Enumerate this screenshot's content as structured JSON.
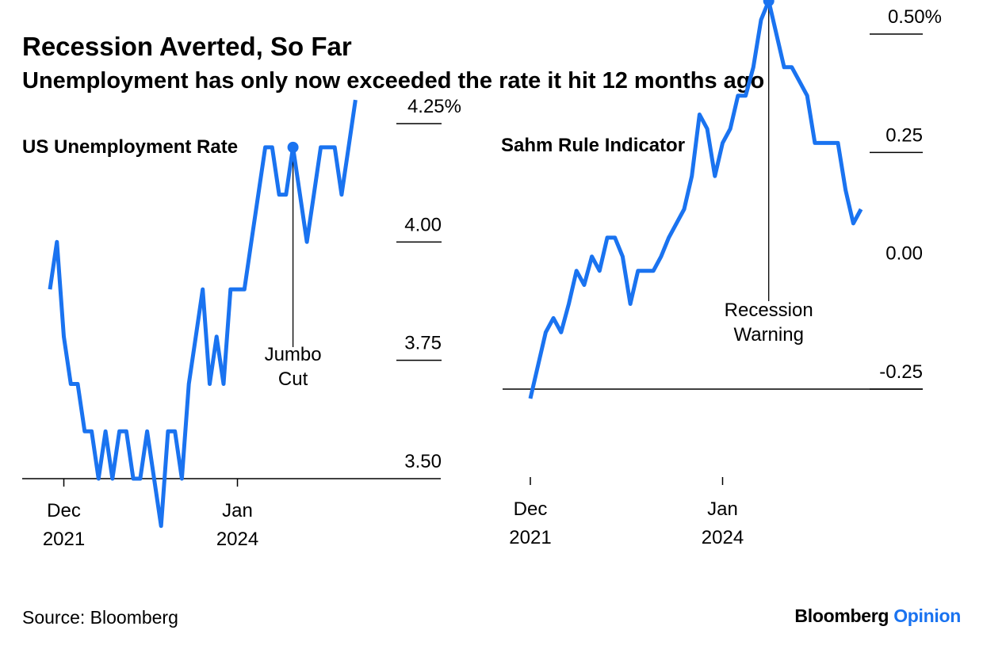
{
  "header": {
    "title": "Recession Averted, So Far",
    "subtitle": "Unemployment has only now exceeded the rate it hit 12 months ago"
  },
  "footer": {
    "source": "Source: Bloomberg",
    "brand_name": "Bloomberg",
    "brand_suffix": "Opinion"
  },
  "colors": {
    "line": "#1a73f0",
    "axis": "#000000",
    "text": "#000000"
  },
  "chart_data": [
    {
      "type": "line",
      "title": "US Unemployment Rate",
      "x_start": "2021-10",
      "x_step": "month",
      "x_tick_labels": [
        {
          "date": "2021-12",
          "line1": "Dec",
          "line2": "2021"
        },
        {
          "date": "2024-01",
          "line1": "Jan",
          "line2": "2024"
        }
      ],
      "y_ticks": [
        {
          "value": 4.25,
          "label": "4.25%"
        },
        {
          "value": 4.0,
          "label": "4.00"
        },
        {
          "value": 3.75,
          "label": "3.75"
        },
        {
          "value": 3.5,
          "label": "3.50"
        }
      ],
      "ylim": [
        3.5,
        4.25
      ],
      "series": [
        {
          "values": [
            3.9,
            4.0,
            3.8,
            3.7,
            3.7,
            3.6,
            3.6,
            3.5,
            3.6,
            3.5,
            3.6,
            3.6,
            3.5,
            3.5,
            3.6,
            3.5,
            3.4,
            3.6,
            3.6,
            3.5,
            3.7,
            3.8,
            3.9,
            3.7,
            3.8,
            3.7,
            3.9,
            3.9,
            3.9,
            4.0,
            4.1,
            4.2,
            4.2,
            4.1,
            4.1,
            4.2,
            4.1,
            4.0,
            4.1,
            4.2,
            4.2,
            4.2,
            4.1,
            4.2,
            4.3
          ]
        }
      ],
      "highlight": {
        "date": "2024-09",
        "value": 4.2
      },
      "annotation": {
        "line1": "Jumbo",
        "line2": "Cut",
        "date": "2024-09"
      }
    },
    {
      "type": "line",
      "title": "Sahm Rule Indicator",
      "x_start": "2021-12",
      "x_step": "month",
      "x_tick_labels": [
        {
          "date": "2021-12",
          "line1": "Dec",
          "line2": "2021"
        },
        {
          "date": "2024-01",
          "line1": "Jan",
          "line2": "2024"
        }
      ],
      "y_ticks": [
        {
          "value": 0.5,
          "label": "0.50%"
        },
        {
          "value": 0.25,
          "label": "0.25"
        },
        {
          "value": 0.0,
          "label": "0.00"
        },
        {
          "value": -0.25,
          "label": "-0.25"
        }
      ],
      "ylim": [
        -0.25,
        0.5
      ],
      "series": [
        {
          "values": [
            -0.27,
            -0.2,
            -0.13,
            -0.1,
            -0.13,
            -0.07,
            0.0,
            -0.03,
            0.03,
            0.0,
            0.07,
            0.07,
            0.03,
            -0.07,
            0.0,
            0.0,
            0.0,
            0.03,
            0.07,
            0.1,
            0.13,
            0.2,
            0.33,
            0.3,
            0.2,
            0.27,
            0.3,
            0.37,
            0.37,
            0.43,
            0.53,
            0.57,
            0.5,
            0.43,
            0.43,
            0.4,
            0.37,
            0.27,
            0.27,
            0.27,
            0.27,
            0.17,
            0.1,
            0.13
          ]
        }
      ],
      "highlight": {
        "date": "2024-07",
        "value": 0.57
      },
      "annotation": {
        "line1": "Recession",
        "line2": "Warning",
        "date": "2024-07"
      }
    }
  ]
}
